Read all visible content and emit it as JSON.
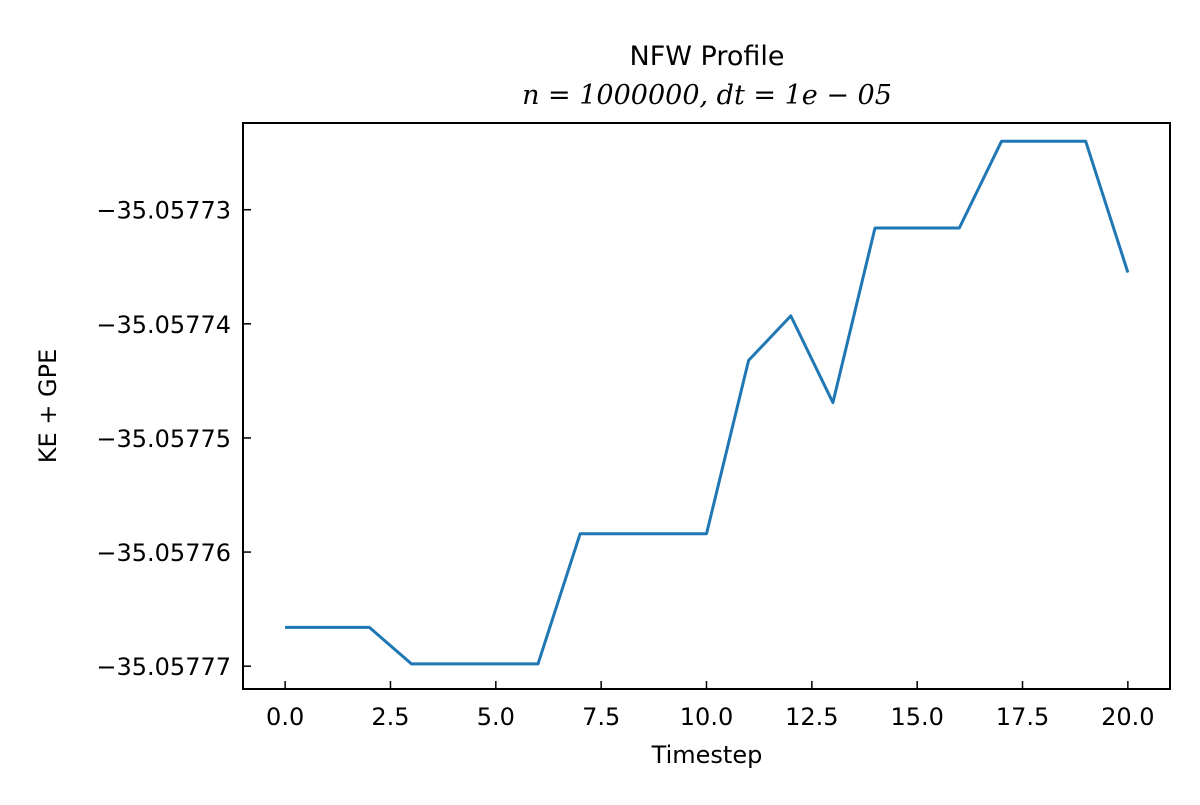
{
  "chart_data": {
    "type": "line",
    "title": "NFW Profile",
    "subtitle": "n = 1000000, dt = 1e − 05",
    "xlabel": "Timestep",
    "ylabel": "KE + GPE",
    "xlim": [
      -1.0,
      21.0
    ],
    "ylim": [
      -35.057772,
      -35.0577224
    ],
    "xticks": [
      0.0,
      2.5,
      5.0,
      7.5,
      10.0,
      12.5,
      15.0,
      17.5,
      20.0
    ],
    "xtick_labels": [
      "0.0",
      "2.5",
      "5.0",
      "7.5",
      "10.0",
      "12.5",
      "15.0",
      "17.5",
      "20.0"
    ],
    "yticks": [
      -35.05773,
      -35.05774,
      -35.05775,
      -35.05776,
      -35.05777
    ],
    "ytick_labels": [
      "−35.05773",
      "−35.05774",
      "−35.05775",
      "−35.05776",
      "−35.05777"
    ],
    "grid": false,
    "series": [
      {
        "color": "#1f77b4",
        "x": [
          0,
          1,
          2,
          3,
          4,
          5,
          6,
          7,
          8,
          9,
          10,
          11,
          12,
          13,
          14,
          15,
          16,
          17,
          18,
          19,
          20
        ],
        "y": [
          -35.0577666,
          -35.0577666,
          -35.0577666,
          -35.0577698,
          -35.0577698,
          -35.0577698,
          -35.0577698,
          -35.0577584,
          -35.0577584,
          -35.0577584,
          -35.0577584,
          -35.0577432,
          -35.0577393,
          -35.0577469,
          -35.0577316,
          -35.0577316,
          -35.0577316,
          -35.057724,
          -35.057724,
          -35.057724,
          -35.0577355
        ]
      }
    ]
  }
}
